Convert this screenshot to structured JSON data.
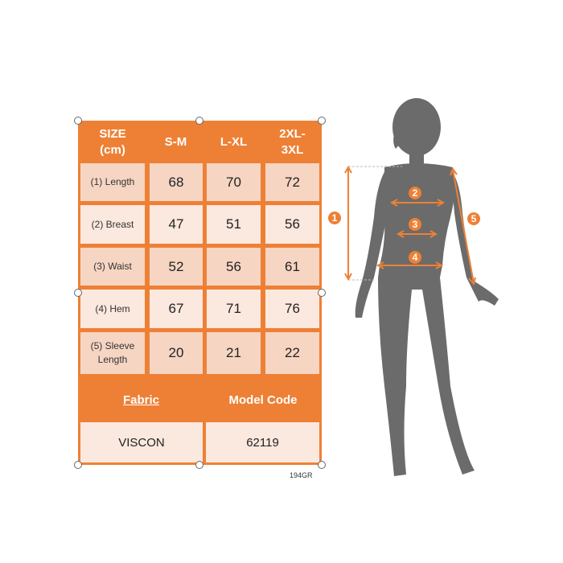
{
  "table": {
    "header": {
      "size_label": "SIZE\n(cm)",
      "sizes": [
        "S-M",
        "L-XL",
        "2XL-\n3XL"
      ]
    },
    "rows": [
      {
        "label": "(1) Length",
        "values": [
          "68",
          "70",
          "72"
        ]
      },
      {
        "label": "(2) Breast",
        "values": [
          "47",
          "51",
          "56"
        ]
      },
      {
        "label": "(3) Waist",
        "values": [
          "52",
          "56",
          "61"
        ]
      },
      {
        "label": "(4) Hem",
        "values": [
          "67",
          "71",
          "76"
        ]
      },
      {
        "label": "(5) Sleeve\nLength",
        "values": [
          "20",
          "21",
          "22"
        ]
      }
    ],
    "fabric_label": "Fabric",
    "model_code_label": "Model Code",
    "fabric_value": "VISCON",
    "model_code_value": "62119"
  },
  "product_code": "194GR",
  "figure": {
    "markers": [
      "1",
      "2",
      "3",
      "4",
      "5"
    ]
  },
  "colors": {
    "accent": "#EE8035",
    "cell_dark": "#F6D5C3",
    "cell_light": "#FBE8DE",
    "silhouette": "#6B6B6B"
  }
}
